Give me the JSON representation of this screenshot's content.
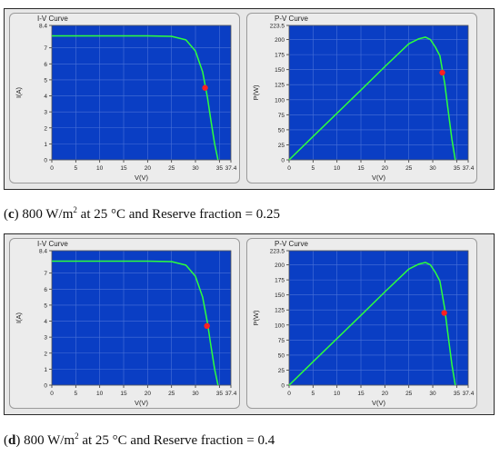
{
  "colors": {
    "plot_bg": "#0a3ec4",
    "grid": "#4a72d8",
    "curve": "#2cff3c",
    "marker": "#ff2020"
  },
  "captions": [
    {
      "letter": "c",
      "text_pre": " 800 W/m",
      "sup": "2",
      "text_post": " at 25 °C and Reserve fraction = 0.25"
    },
    {
      "letter": "d",
      "text_pre": " 800 W/m",
      "sup": "2",
      "text_post": " at 25 °C and Reserve fraction = 0.4"
    }
  ],
  "chart_data": [
    {
      "type": "line",
      "title": "I-V Curve",
      "xlabel": "V(V)",
      "ylabel": "I(A)",
      "xlim": [
        0,
        37.4
      ],
      "ylim": [
        0,
        8.4
      ],
      "xticks": [
        "0",
        "5",
        "10",
        "15",
        "20",
        "25",
        "30",
        "35",
        "37.4"
      ],
      "yticks": [
        "0",
        "1",
        "2",
        "3",
        "4",
        "5",
        "6",
        "7",
        "8.4"
      ],
      "series": [
        {
          "x": [
            0,
            5,
            10,
            15,
            20,
            25,
            28,
            30,
            31.5,
            32.5,
            33.2,
            34,
            34.7
          ],
          "y": [
            7.75,
            7.75,
            7.75,
            7.75,
            7.75,
            7.72,
            7.5,
            6.8,
            5.5,
            3.9,
            2.5,
            1.0,
            0
          ]
        }
      ],
      "marker": {
        "x": 32.0,
        "y": 4.5
      },
      "grid": true
    },
    {
      "type": "line",
      "title": "P-V Curve",
      "xlabel": "V(V)",
      "ylabel": "P(W)",
      "xlim": [
        0,
        37.4
      ],
      "ylim": [
        0,
        223.5
      ],
      "xticks": [
        "0",
        "5",
        "10",
        "15",
        "20",
        "25",
        "30",
        "35",
        "37.4"
      ],
      "yticks": [
        "0",
        "25",
        "50",
        "75",
        "100",
        "125",
        "150",
        "175",
        "200",
        "223.5"
      ],
      "series": [
        {
          "x": [
            0,
            5,
            10,
            15,
            20,
            25,
            27,
            28.5,
            29.5,
            30.5,
            31.5,
            32.5,
            33.2,
            34,
            34.7
          ],
          "y": [
            0,
            38.8,
            77.5,
            116,
            155,
            193,
            201,
            204,
            200,
            188,
            173,
            127,
            83,
            34,
            0
          ]
        }
      ],
      "marker": {
        "x": 32.0,
        "y": 145
      },
      "grid": true
    },
    {
      "type": "line",
      "title": "I-V Curve",
      "xlabel": "V(V)",
      "ylabel": "I(A)",
      "xlim": [
        0,
        37.4
      ],
      "ylim": [
        0,
        8.4
      ],
      "xticks": [
        "0",
        "5",
        "10",
        "15",
        "20",
        "25",
        "30",
        "35",
        "37.4"
      ],
      "yticks": [
        "0",
        "1",
        "2",
        "3",
        "4",
        "5",
        "6",
        "7",
        "8.4"
      ],
      "series": [
        {
          "x": [
            0,
            5,
            10,
            15,
            20,
            25,
            28,
            30,
            31.5,
            32.5,
            33.2,
            34,
            34.7
          ],
          "y": [
            7.75,
            7.75,
            7.75,
            7.75,
            7.75,
            7.72,
            7.5,
            6.8,
            5.5,
            3.9,
            2.5,
            1.0,
            0
          ]
        }
      ],
      "marker": {
        "x": 32.4,
        "y": 3.7
      },
      "grid": true
    },
    {
      "type": "line",
      "title": "P-V Curve",
      "xlabel": "V(V)",
      "ylabel": "P(W)",
      "xlim": [
        0,
        37.4
      ],
      "ylim": [
        0,
        223.5
      ],
      "xticks": [
        "0",
        "5",
        "10",
        "15",
        "20",
        "25",
        "30",
        "35",
        "37.4"
      ],
      "yticks": [
        "0",
        "25",
        "50",
        "75",
        "100",
        "125",
        "150",
        "175",
        "200",
        "223.5"
      ],
      "series": [
        {
          "x": [
            0,
            5,
            10,
            15,
            20,
            25,
            27,
            28.5,
            29.5,
            30.5,
            31.5,
            32.5,
            33.2,
            34,
            34.7
          ],
          "y": [
            0,
            38.8,
            77.5,
            116,
            155,
            193,
            201,
            204,
            200,
            188,
            173,
            127,
            83,
            34,
            0
          ]
        }
      ],
      "marker": {
        "x": 32.4,
        "y": 120
      },
      "grid": true
    }
  ]
}
